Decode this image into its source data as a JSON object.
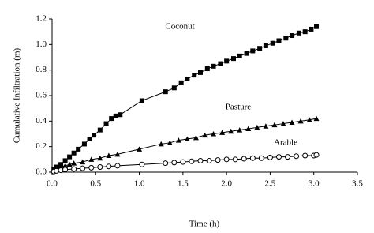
{
  "chart_data": {
    "type": "line",
    "xlabel": "Time (h)",
    "ylabel": "Cumulative Infiltration (m)",
    "xlim": [
      0,
      3.5
    ],
    "ylim": [
      0,
      1.2
    ],
    "xticks": [
      {
        "value": 0,
        "label": "0.0"
      },
      0.5,
      {
        "value": 1,
        "label": "1.0"
      },
      1.5,
      {
        "value": 2,
        "label": "2.0"
      },
      2.5,
      {
        "value": 3,
        "label": "3.0"
      },
      3.5
    ],
    "yticks": [
      {
        "value": 0,
        "label": "0.0"
      },
      0.2,
      0.4,
      0.6,
      0.8,
      {
        "value": 1,
        "label": "1.0"
      },
      1.2
    ],
    "series": [
      {
        "name": "Coconut",
        "color": "#000000",
        "marker": "square",
        "x": [
          0.02,
          0.05,
          0.1,
          0.15,
          0.2,
          0.25,
          0.3,
          0.37,
          0.43,
          0.48,
          0.55,
          0.62,
          0.68,
          0.73,
          0.78,
          1.03,
          1.3,
          1.4,
          1.48,
          1.55,
          1.63,
          1.7,
          1.78,
          1.85,
          1.93,
          2.0,
          2.08,
          2.15,
          2.23,
          2.3,
          2.38,
          2.45,
          2.53,
          2.6,
          2.68,
          2.75,
          2.83,
          2.9,
          2.97,
          3.03
        ],
        "values": [
          0.02,
          0.04,
          0.06,
          0.09,
          0.12,
          0.15,
          0.18,
          0.22,
          0.26,
          0.29,
          0.33,
          0.38,
          0.42,
          0.44,
          0.45,
          0.56,
          0.63,
          0.66,
          0.7,
          0.73,
          0.76,
          0.78,
          0.81,
          0.83,
          0.85,
          0.87,
          0.89,
          0.91,
          0.93,
          0.95,
          0.97,
          0.99,
          1.01,
          1.03,
          1.05,
          1.07,
          1.09,
          1.1,
          1.12,
          1.14
        ]
      },
      {
        "name": "Pasture",
        "color": "#000000",
        "marker": "triangle",
        "x": [
          0.02,
          0.05,
          0.1,
          0.15,
          0.2,
          0.25,
          0.35,
          0.45,
          0.55,
          0.65,
          0.75,
          1.0,
          1.25,
          1.35,
          1.45,
          1.55,
          1.65,
          1.75,
          1.85,
          1.95,
          2.05,
          2.15,
          2.25,
          2.35,
          2.45,
          2.55,
          2.65,
          2.75,
          2.85,
          2.95,
          3.03
        ],
        "values": [
          0.01,
          0.03,
          0.04,
          0.05,
          0.06,
          0.07,
          0.08,
          0.1,
          0.11,
          0.13,
          0.14,
          0.18,
          0.22,
          0.23,
          0.25,
          0.26,
          0.27,
          0.29,
          0.3,
          0.31,
          0.32,
          0.33,
          0.34,
          0.35,
          0.36,
          0.37,
          0.38,
          0.39,
          0.4,
          0.41,
          0.42
        ]
      },
      {
        "name": "Arable",
        "color": "#000000",
        "marker": "circle-open",
        "x": [
          0.02,
          0.05,
          0.1,
          0.15,
          0.25,
          0.35,
          0.45,
          0.55,
          0.65,
          0.75,
          1.03,
          1.3,
          1.4,
          1.5,
          1.6,
          1.7,
          1.8,
          1.9,
          2.0,
          2.1,
          2.2,
          2.3,
          2.4,
          2.5,
          2.6,
          2.7,
          2.8,
          2.9,
          3.0,
          3.03
        ],
        "values": [
          0.005,
          0.01,
          0.015,
          0.02,
          0.025,
          0.03,
          0.035,
          0.04,
          0.045,
          0.05,
          0.06,
          0.07,
          0.075,
          0.08,
          0.085,
          0.09,
          0.09,
          0.095,
          0.1,
          0.1,
          0.105,
          0.11,
          0.11,
          0.115,
          0.12,
          0.12,
          0.125,
          0.13,
          0.13,
          0.135
        ]
      }
    ]
  }
}
